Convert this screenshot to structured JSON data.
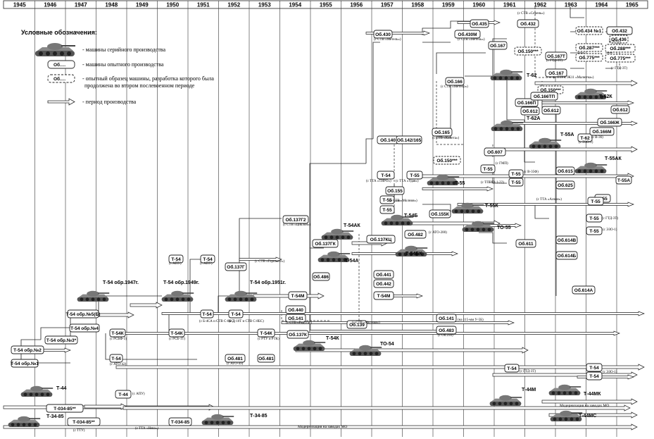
{
  "years": [
    "1945",
    "1946",
    "1947",
    "1948",
    "1949",
    "1950",
    "1951",
    "1952",
    "1953",
    "1954",
    "1955",
    "1956",
    "1957",
    "1958",
    "1959",
    "1960",
    "1961",
    "1962",
    "1963",
    "1964",
    "1965"
  ],
  "legend": {
    "title": "Условные обозначения:",
    "serial": "- машины серийного производства",
    "prototype_box": "Об.…",
    "prototype": "- машины опытного производства",
    "continued_box": "Об.…",
    "continued_1": "- опытный образец машины, разработка которого была",
    "continued_2": "продолжена во втором послевоенном периоде",
    "arrow": "- период производства"
  },
  "notes": {
    "mo": "Модернизация на заводах МО",
    "mo2": "Модернизация на заводах МО",
    "nkv": "Модернизация на заводах МО"
  },
  "boxes": [
    {
      "id": "b1",
      "label": "Т-54 обр.№2"
    },
    {
      "id": "b2",
      "label": "Т-54 обр.№1"
    },
    {
      "id": "b3",
      "label": "Т-54 обр.№3*"
    },
    {
      "id": "b4",
      "label": "Т-54 обр.№4"
    },
    {
      "id": "b5",
      "label": "Т-54 обр.№5(Б)"
    },
    {
      "id": "b6",
      "label": "Т-54К"
    },
    {
      "id": "b7",
      "label": "Т-54"
    },
    {
      "id": "b8",
      "label": "Т-44"
    },
    {
      "id": "b9",
      "label": "Т-54"
    },
    {
      "id": "b10",
      "label": "Т-54"
    },
    {
      "id": "b11",
      "label": "Т-54К"
    },
    {
      "id": "b12",
      "label": "Т-54"
    },
    {
      "id": "b13",
      "label": "Т-54"
    },
    {
      "id": "b14",
      "label": "Об.137Г"
    },
    {
      "id": "b15",
      "label": "Об.481"
    },
    {
      "id": "b16",
      "label": "Т-54К"
    },
    {
      "id": "b17",
      "label": "Об.481"
    },
    {
      "id": "b18",
      "label": "Об.137Г2"
    },
    {
      "id": "b19",
      "label": "Об.137ГК"
    },
    {
      "id": "b20",
      "label": "Т-54М"
    },
    {
      "id": "b21",
      "label": "Об.486"
    },
    {
      "id": "b22",
      "label": "Об.440"
    },
    {
      "id": "b23",
      "label": "Об.141"
    },
    {
      "id": "b24",
      "label": "Об.137К"
    },
    {
      "id": "b25",
      "label": "Об.137КЦ"
    },
    {
      "id": "b26",
      "label": "Об.441"
    },
    {
      "id": "b27",
      "label": "Об.442"
    },
    {
      "id": "b28",
      "label": "Т-54М"
    },
    {
      "id": "b29",
      "label": "Об.139"
    },
    {
      "id": "b30",
      "label": "Об.141"
    },
    {
      "id": "b31",
      "label": "Об.483"
    },
    {
      "id": "b32",
      "label": "Об.140"
    },
    {
      "id": "b33",
      "label": "Об.142/165"
    },
    {
      "id": "b34",
      "label": "Т-54"
    },
    {
      "id": "b35",
      "label": "Т-55"
    },
    {
      "id": "b36",
      "label": "Об.155"
    },
    {
      "id": "b37",
      "label": "Т-55"
    },
    {
      "id": "b38",
      "label": "Т-55"
    },
    {
      "id": "b39",
      "label": "Об.482"
    },
    {
      "id": "b40",
      "label": "Об.155К"
    },
    {
      "id": "b41",
      "label": "Об.430"
    },
    {
      "id": "b42",
      "label": "Об.435"
    },
    {
      "id": "b43",
      "label": "Об.430М"
    },
    {
      "id": "b44",
      "label": "Об.166"
    },
    {
      "id": "b45",
      "label": "Об.165"
    },
    {
      "id": "b46",
      "label": "Об.150***"
    },
    {
      "id": "b47",
      "label": "Об.607"
    },
    {
      "id": "b48",
      "label": "Т-55"
    },
    {
      "id": "b49",
      "label": "Т-55"
    },
    {
      "id": "b50",
      "label": "Т-55"
    },
    {
      "id": "b51",
      "label": "Об.432"
    },
    {
      "id": "b52",
      "label": "Об.167"
    },
    {
      "id": "b53",
      "label": "Об.150***"
    },
    {
      "id": "b54",
      "label": "Об.167Т"
    },
    {
      "id": "b55",
      "label": "Об.167"
    },
    {
      "id": "b56",
      "label": "Об.166П"
    },
    {
      "id": "b57",
      "label": "Об.612"
    },
    {
      "id": "b58",
      "label": "Об.611"
    },
    {
      "id": "b59",
      "label": "Т-54"
    },
    {
      "id": "b60",
      "label": "Об.150***"
    },
    {
      "id": "b61",
      "label": "Об.166ТП"
    },
    {
      "id": "b62",
      "label": "Об.612"
    },
    {
      "id": "b63",
      "label": "Т-62"
    },
    {
      "id": "b64",
      "label": "Об.615"
    },
    {
      "id": "b65",
      "label": "Об.625"
    },
    {
      "id": "b66",
      "label": "Т-55"
    },
    {
      "id": "b67",
      "label": "Т-55"
    },
    {
      "id": "b68",
      "label": "Об.614В"
    },
    {
      "id": "b69",
      "label": "Об.614Б"
    },
    {
      "id": "b70",
      "label": "Об.614А"
    },
    {
      "id": "b71",
      "label": "Т-54"
    },
    {
      "id": "b72",
      "label": "Об.434 №1"
    },
    {
      "id": "b73",
      "label": "Об.434 №2"
    },
    {
      "id": "b74",
      "label": "Об.436"
    },
    {
      "id": "b75",
      "label": "Об.287***"
    },
    {
      "id": "b76",
      "label": "Об.775***"
    },
    {
      "id": "b77",
      "label": "Об.166Ж"
    },
    {
      "id": "b78",
      "label": "Об.166М"
    },
    {
      "id": "b79",
      "label": "Т-55"
    },
    {
      "id": "b80",
      "label": "Т-55А"
    },
    {
      "id": "b81",
      "label": "Об.612"
    },
    {
      "id": "b82",
      "label": "Т-55"
    },
    {
      "id": "b83",
      "label": "Т-54"
    },
    {
      "id": "b84",
      "label": "Т-44"
    },
    {
      "id": "b85",
      "label": "Т-034-85**"
    },
    {
      "id": "b86",
      "label": "Т-034-85**"
    },
    {
      "id": "b87",
      "label": "Т-034-85"
    },
    {
      "id": "b88",
      "label": "Об.288***"
    },
    {
      "id": "b89",
      "label": "Об.775***"
    },
    {
      "id": "b90",
      "label": "Об.432"
    }
  ],
  "tanks": [
    {
      "id": "t1",
      "label": "Т-44"
    },
    {
      "id": "t2",
      "label": "Т-34-85"
    },
    {
      "id": "t3",
      "label": "Т-54 обр.1947г."
    },
    {
      "id": "t4",
      "label": "Т-54 обр.1949г."
    },
    {
      "id": "t5",
      "label": "Т-54 обр.1951г."
    },
    {
      "id": "t6",
      "label": "Т-34-85"
    },
    {
      "id": "t7",
      "label": "Т-54К"
    },
    {
      "id": "t8",
      "label": "ТО-54"
    },
    {
      "id": "t9",
      "label": "Т-54АК"
    },
    {
      "id": "t10",
      "label": "Т-54А"
    },
    {
      "id": "t11",
      "label": "Т-54Б"
    },
    {
      "id": "t12",
      "label": "Т-54БК"
    },
    {
      "id": "t13",
      "label": "Т-55"
    },
    {
      "id": "t14",
      "label": "Т-55К"
    },
    {
      "id": "t15",
      "label": "ТО-55"
    },
    {
      "id": "t16",
      "label": "Т-62"
    },
    {
      "id": "t17",
      "label": "Т-62А"
    },
    {
      "id": "t18",
      "label": "Т-62К"
    },
    {
      "id": "t19",
      "label": "Т-55А"
    },
    {
      "id": "t20",
      "label": "Т-55АК"
    },
    {
      "id": "t21",
      "label": "Т-44М"
    },
    {
      "id": "t22",
      "label": "Т-44МК"
    },
    {
      "id": "t23",
      "label": "Т-44МС"
    }
  ],
  "annotations": [
    {
      "id": "a1",
      "text": "(с АПУ)"
    },
    {
      "id": "a2",
      "text": "(с АПУ)"
    },
    {
      "id": "a3",
      "text": "(с РСБФ-3)"
    },
    {
      "id": "a4",
      "text": "(с РСБ-1Т)"
    },
    {
      "id": "a5",
      "text": "(с АТО-42)"
    },
    {
      "id": "a6",
      "text": "(с Б-4СА и СТВ С-8БС)"
    },
    {
      "id": "a7",
      "text": "(с Д-10Т и СТВ С-8БС)"
    },
    {
      "id": "a8",
      "text": "(с АТО-49)"
    },
    {
      "id": "a9",
      "text": "(с РТУ и РТК)"
    },
    {
      "id": "a10",
      "text": "(с СТВ «Горизонт»)"
    },
    {
      "id": "a11",
      "text": "(с СТВ «Циклон»)"
    },
    {
      "id": "a12",
      "text": "(с СТВ «Радуга»)"
    },
    {
      "id": "a13",
      "text": "(с СТВ «Молния»)"
    },
    {
      "id": "a14",
      "text": "(с Об.250)"
    },
    {
      "id": "a15",
      "text": "(на 115-мм У-5Б)"
    },
    {
      "id": "a16",
      "text": "(с АТО-200)"
    },
    {
      "id": "a17",
      "text": "(с ТТА «ТИРО»)"
    },
    {
      "id": "a18",
      "text": "(с ТТА «Удав»)"
    },
    {
      "id": "a19",
      "text": "(с СТВ «Молния»)"
    },
    {
      "id": "a20",
      "text": "(с СТВ «Комета»)"
    },
    {
      "id": "a21",
      "text": "(с СТВ «Метеор»)"
    },
    {
      "id": "a22",
      "text": "(с СТВ «Метель»)"
    },
    {
      "id": "a23",
      "text": "(с СТВ «Метель»)"
    },
    {
      "id": "a24",
      "text": "(с СТВ «Сирень»)"
    },
    {
      "id": "a25",
      "text": "(с ГТД-3Т)"
    },
    {
      "id": "a26",
      "text": "(с ПТРК 9К11 «Малютка»)"
    },
    {
      "id": "a27",
      "text": "(с ЭЗО-1)"
    },
    {
      "id": "a28",
      "text": "(с В-36)"
    },
    {
      "id": "a29",
      "text": "(с ГМП)"
    },
    {
      "id": "a30",
      "text": "(с В-35Ф)"
    },
    {
      "id": "a31",
      "text": "(с ТПВЮ-1-22)"
    },
    {
      "id": "a32",
      "text": "(с ТТА «Алмаз»)"
    },
    {
      "id": "a33",
      "text": "(с ГТД-3Т)"
    },
    {
      "id": "a34",
      "text": "(с ЭЗО-1)"
    },
    {
      "id": "a35",
      "text": "(с В-45)"
    },
    {
      "id": "a36",
      "text": "(с ГТД-3Т)"
    },
    {
      "id": "a37",
      "text": "(с ТТУ)"
    },
    {
      "id": "a38",
      "text": "(с ТТА «Нева»)"
    },
    {
      "id": "a39",
      "text": "(с АПУ)"
    },
    {
      "id": "a40",
      "text": "(с ЭЗО-1)"
    },
    {
      "id": "a41",
      "text": "(с ГТД-3Т)"
    }
  ]
}
